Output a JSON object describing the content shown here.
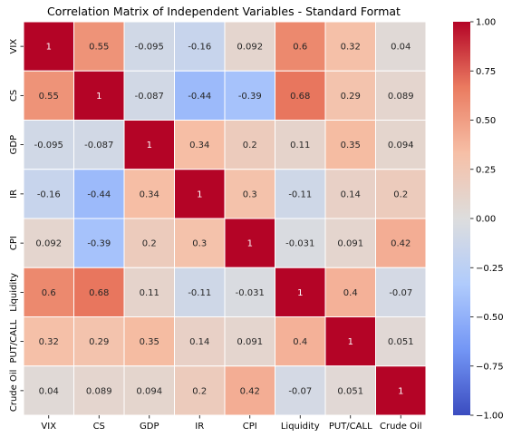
{
  "chart_data": {
    "type": "heatmap",
    "title": "Correlation Matrix of Independent Variables - Standard Format",
    "x_categories": [
      "VIX",
      "CS",
      "GDP",
      "IR",
      "CPI",
      "Liquidity",
      "PUT/CALL",
      "Crude Oil"
    ],
    "y_categories": [
      "VIX",
      "CS",
      "GDP",
      "IR",
      "CPI",
      "Liquidity",
      "PUT/CALL",
      "Crude Oil"
    ],
    "values": [
      [
        1,
        0.55,
        -0.095,
        -0.16,
        0.092,
        0.6,
        0.32,
        0.04
      ],
      [
        0.55,
        1,
        -0.087,
        -0.44,
        -0.39,
        0.68,
        0.29,
        0.089
      ],
      [
        -0.095,
        -0.087,
        1,
        0.34,
        0.2,
        0.11,
        0.35,
        0.094
      ],
      [
        -0.16,
        -0.44,
        0.34,
        1,
        0.3,
        -0.11,
        0.14,
        0.2
      ],
      [
        0.092,
        -0.39,
        0.2,
        0.3,
        1,
        -0.031,
        0.091,
        0.42
      ],
      [
        0.6,
        0.68,
        0.11,
        -0.11,
        -0.031,
        1,
        0.4,
        -0.07
      ],
      [
        0.32,
        0.29,
        0.35,
        0.14,
        0.091,
        0.4,
        1,
        0.051
      ],
      [
        0.04,
        0.089,
        0.094,
        0.2,
        0.42,
        -0.07,
        0.051,
        1
      ]
    ],
    "cell_labels": [
      [
        "1",
        "0.55",
        "-0.095",
        "-0.16",
        "0.092",
        "0.6",
        "0.32",
        "0.04"
      ],
      [
        "0.55",
        "1",
        "-0.087",
        "-0.44",
        "-0.39",
        "0.68",
        "0.29",
        "0.089"
      ],
      [
        "-0.095",
        "-0.087",
        "1",
        "0.34",
        "0.2",
        "0.11",
        "0.35",
        "0.094"
      ],
      [
        "-0.16",
        "-0.44",
        "0.34",
        "1",
        "0.3",
        "-0.11",
        "0.14",
        "0.2"
      ],
      [
        "0.092",
        "-0.39",
        "0.2",
        "0.3",
        "1",
        "-0.031",
        "0.091",
        "0.42"
      ],
      [
        "0.6",
        "0.68",
        "0.11",
        "-0.11",
        "-0.031",
        "1",
        "0.4",
        "-0.07"
      ],
      [
        "0.32",
        "0.29",
        "0.35",
        "0.14",
        "0.091",
        "0.4",
        "1",
        "0.051"
      ],
      [
        "0.04",
        "0.089",
        "0.094",
        "0.2",
        "0.42",
        "-0.07",
        "0.051",
        "1"
      ]
    ],
    "colorbar": {
      "colormap": "coolwarm",
      "range": [
        -1,
        1
      ],
      "ticks": [
        1.0,
        0.75,
        0.5,
        0.25,
        0.0,
        -0.25,
        -0.5,
        -0.75,
        -1.0
      ],
      "tick_labels": [
        "1.00",
        "0.75",
        "0.50",
        "0.25",
        "0.00",
        "−0.25",
        "−0.50",
        "−0.75",
        "−1.00"
      ]
    },
    "grid_lines": true,
    "grid_color": "#ffffff",
    "colormap_stops": [
      "#3b4cc0",
      "#7396f5",
      "#b0cbfc",
      "#dddddd",
      "#f6bfa6",
      "#ea7b60",
      "#b40426"
    ]
  }
}
